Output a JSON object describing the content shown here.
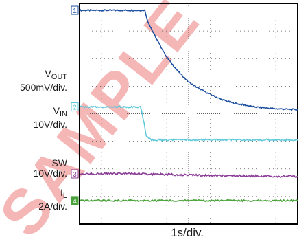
{
  "chart_data": {
    "type": "line",
    "title": "",
    "xlabel": "1s/div.",
    "divisions": {
      "x": 10,
      "y": 8
    },
    "xlim": [
      0,
      10
    ],
    "ylim": [
      0,
      8
    ],
    "grid": true,
    "watermark": "SAMPLE",
    "series": [
      {
        "name": "VOUT",
        "label_main": "V",
        "label_sub": "OUT",
        "scale": "500mV/div.",
        "marker": "1",
        "color": "#1d4fa0",
        "x": [
          0,
          3.0,
          3.1,
          3.5,
          4.0,
          4.5,
          5.0,
          5.5,
          6.0,
          6.5,
          7.0,
          8.0,
          9.0,
          10.0
        ],
        "y": [
          7.75,
          7.75,
          7.4,
          6.75,
          6.05,
          5.55,
          5.15,
          4.9,
          4.7,
          4.52,
          4.4,
          4.25,
          4.18,
          4.15
        ]
      },
      {
        "name": "VIN",
        "label_main": "V",
        "label_sub": "IN",
        "scale": "10V/div.",
        "marker": "2",
        "color": "#5ec9d8",
        "x": [
          0,
          2.8,
          2.95,
          3.05,
          3.3,
          4,
          6,
          8,
          10
        ],
        "y": [
          4.25,
          4.25,
          3.7,
          3.2,
          3.05,
          3.05,
          3.05,
          3.05,
          3.05
        ]
      },
      {
        "name": "SW",
        "label_main": "SW",
        "label_sub": "",
        "scale": "10V/div.",
        "marker": "3",
        "color": "#8a3d96",
        "x": [
          0,
          2,
          4,
          6,
          8,
          10
        ],
        "y": [
          1.82,
          1.83,
          1.8,
          1.76,
          1.74,
          1.72
        ]
      },
      {
        "name": "IL",
        "label_main": "I",
        "label_sub": "L",
        "scale": "2A/div.",
        "marker": "4",
        "color": "#4aa33a",
        "x": [
          0,
          10
        ],
        "y": [
          0.85,
          0.85
        ]
      }
    ]
  }
}
